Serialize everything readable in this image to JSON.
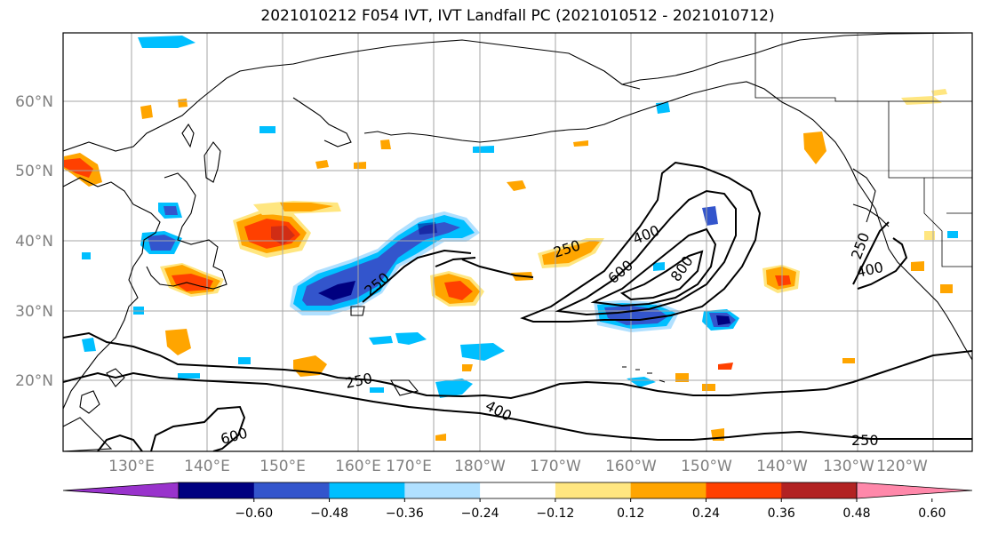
{
  "title": "2021010212 F054 IVT, IVT Landfall PC (2021010512 - 2021010712)",
  "lat_labels": [
    "60°N",
    "50°N",
    "40°N",
    "30°N",
    "20°N"
  ],
  "lon_labels": [
    "130°E",
    "140°E",
    "150°E",
    "160°E",
    "170°E",
    "180°W",
    "170°W",
    "160°W",
    "150°W",
    "140°W",
    "130°W",
    "120°W"
  ],
  "contour_labels": [
    "250",
    "400",
    "600",
    "800",
    "250",
    "250",
    "400",
    "250",
    "400",
    "600",
    "250"
  ],
  "colorbar": {
    "ticks": [
      "−0.60",
      "−0.48",
      "−0.36",
      "−0.24",
      "−0.12",
      "0.12",
      "0.24",
      "0.36",
      "0.48",
      "0.60"
    ],
    "colors": [
      "#9933cc",
      "#000080",
      "#3355cc",
      "#00bfff",
      "#b0e0ff",
      "#ffffff",
      "#ffe680",
      "#ffa500",
      "#ff4000",
      "#b22222",
      "#ff88aa"
    ]
  }
}
